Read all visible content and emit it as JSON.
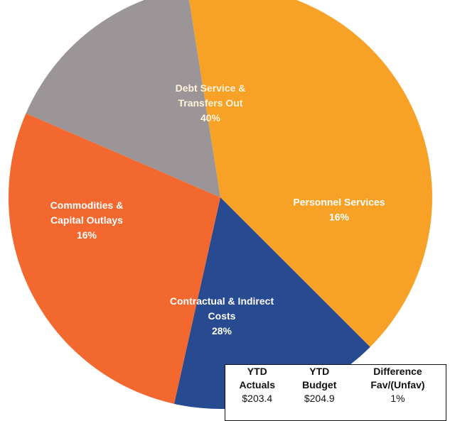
{
  "chart_data": {
    "type": "pie",
    "slices": [
      {
        "label_lines": [
          "Debt Service &",
          "Transfers Out"
        ],
        "pct_label": "40%",
        "value": 40,
        "color": "#f7a127"
      },
      {
        "label_lines": [
          "Personnel Services"
        ],
        "pct_label": "16%",
        "value": 16,
        "color": "#284a91"
      },
      {
        "label_lines": [
          "Contractual & Indirect",
          "Costs"
        ],
        "pct_label": "28%",
        "value": 28,
        "color": "#f2682e"
      },
      {
        "label_lines": [
          "Commodities &",
          "Capital Outlays"
        ],
        "pct_label": "16%",
        "value": 16,
        "color": "#9c9598"
      }
    ]
  },
  "summary_table": {
    "headers": [
      [
        "YTD",
        "Actuals"
      ],
      [
        "YTD",
        "Budget"
      ],
      [
        "Difference",
        "Fav/(Unfav)"
      ]
    ],
    "values": [
      "$203.4",
      "$204.9",
      "1%"
    ]
  }
}
